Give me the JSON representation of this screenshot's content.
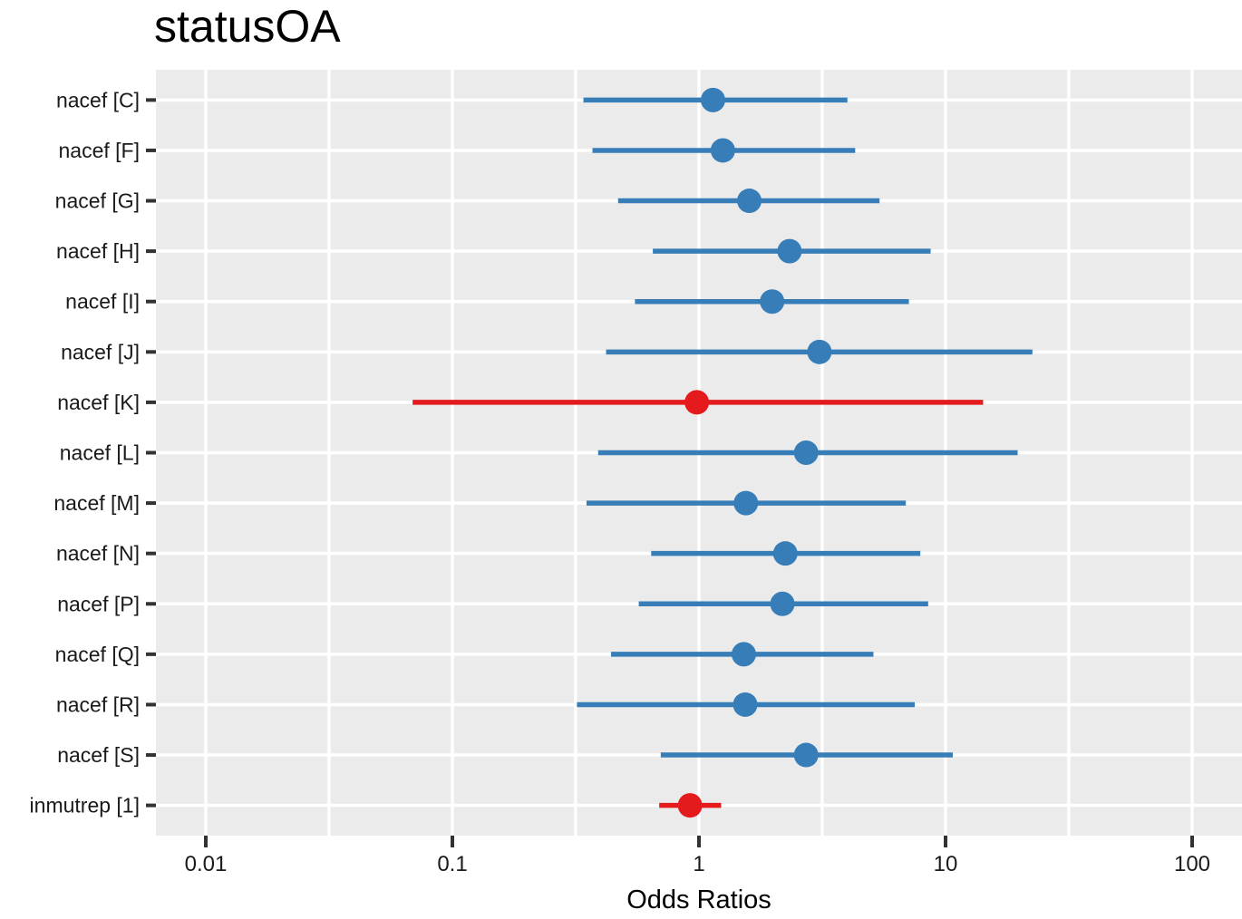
{
  "title": "statusOA",
  "colors": {
    "positive": "#377EB8",
    "negative": "#E41A1C",
    "panel_background": "#EBEBEB",
    "gridline": "#FFFFFF",
    "tick_mark": "#333333",
    "title_text": "#000000",
    "axis_text": "#1A1A1A"
  },
  "chart_data": {
    "type": "scatter",
    "subtype": "forest-plot-odds-ratios",
    "title": "statusOA",
    "xlabel": "Odds Ratios",
    "ylabel": "",
    "x_scale": "log10",
    "xlim": [
      0.0063,
      155
    ],
    "grid": "on",
    "legend_position": "none",
    "x_ticks": [
      0.01,
      0.1,
      1,
      10,
      100
    ],
    "x_tick_labels": [
      "0.01",
      "0.1",
      "1",
      "10",
      "100"
    ],
    "x_minor_gridlines": [
      0.0316,
      0.316,
      3.16,
      31.6
    ],
    "reference_line": 1,
    "categories": [
      "nacef [C]",
      "nacef [F]",
      "nacef [G]",
      "nacef [H]",
      "nacef [I]",
      "nacef [J]",
      "nacef [K]",
      "nacef [L]",
      "nacef [M]",
      "nacef [N]",
      "nacef [P]",
      "nacef [Q]",
      "nacef [R]",
      "nacef [S]",
      "inmutrep [1]"
    ],
    "points": [
      {
        "category": "nacef [C]",
        "or": 1.14,
        "ci_low": 0.34,
        "ci_high": 4.0,
        "group": "positive"
      },
      {
        "category": "nacef [F]",
        "or": 1.25,
        "ci_low": 0.37,
        "ci_high": 4.3,
        "group": "positive"
      },
      {
        "category": "nacef [G]",
        "or": 1.6,
        "ci_low": 0.47,
        "ci_high": 5.4,
        "group": "positive"
      },
      {
        "category": "nacef [H]",
        "or": 2.33,
        "ci_low": 0.65,
        "ci_high": 8.7,
        "group": "positive"
      },
      {
        "category": "nacef [I]",
        "or": 1.98,
        "ci_low": 0.55,
        "ci_high": 7.1,
        "group": "positive"
      },
      {
        "category": "nacef [J]",
        "or": 3.08,
        "ci_low": 0.42,
        "ci_high": 22.5,
        "group": "positive"
      },
      {
        "category": "nacef [K]",
        "or": 0.98,
        "ci_low": 0.069,
        "ci_high": 14.2,
        "group": "negative"
      },
      {
        "category": "nacef [L]",
        "or": 2.72,
        "ci_low": 0.39,
        "ci_high": 19.6,
        "group": "positive"
      },
      {
        "category": "nacef [M]",
        "or": 1.55,
        "ci_low": 0.35,
        "ci_high": 6.9,
        "group": "positive"
      },
      {
        "category": "nacef [N]",
        "or": 2.24,
        "ci_low": 0.64,
        "ci_high": 7.9,
        "group": "positive"
      },
      {
        "category": "nacef [P]",
        "or": 2.18,
        "ci_low": 0.57,
        "ci_high": 8.5,
        "group": "positive"
      },
      {
        "category": "nacef [Q]",
        "or": 1.52,
        "ci_low": 0.44,
        "ci_high": 5.1,
        "group": "positive"
      },
      {
        "category": "nacef [R]",
        "or": 1.54,
        "ci_low": 0.32,
        "ci_high": 7.5,
        "group": "positive"
      },
      {
        "category": "nacef [S]",
        "or": 2.72,
        "ci_low": 0.7,
        "ci_high": 10.7,
        "group": "positive"
      },
      {
        "category": "inmutrep [1]",
        "or": 0.92,
        "ci_low": 0.69,
        "ci_high": 1.23,
        "group": "negative"
      }
    ]
  }
}
